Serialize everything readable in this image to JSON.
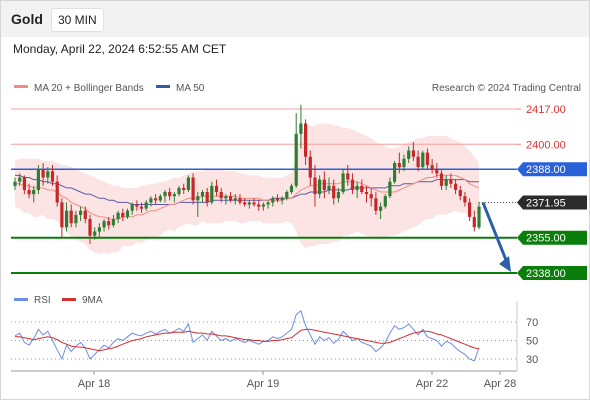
{
  "header": {
    "title": "Gold",
    "timeframe": "30 MIN",
    "datetime": "Monday, April 22, 2024 6:52:55 AM CET"
  },
  "credit": "Research © 2024 Trading Central",
  "legend": {
    "ma20_bb": "MA 20 + Bollinger Bands",
    "ma50": "MA 50",
    "rsi": "RSI",
    "rsi_ma": "9MA"
  },
  "colors": {
    "up_candle": "#2e7d32",
    "down_candle": "#c62828",
    "bollinger_band": "#fde4e4",
    "ma20": "#f28b82",
    "ma50": "#5a5aa8",
    "pivot_line": "#2962d8",
    "support_line": "#0a7d0a",
    "resistance_line": "#f4a0a0",
    "rsi_line": "#6b8ee6",
    "rsi_ma_line": "#d32f2f",
    "forecast_arrow": "#2d5fa8"
  },
  "chart_data": {
    "type": "candlestick",
    "instrument": "Gold",
    "timeframe": "30 MIN",
    "x_ticks": [
      "Apr 18",
      "Apr 19",
      "Apr 22",
      "Apr 28"
    ],
    "price_levels": {
      "resistance": [
        2417.0,
        2400.0
      ],
      "pivot": 2388.0,
      "last": 2371.95,
      "support": [
        2355.0,
        2338.0
      ]
    },
    "price_labels": [
      "2417.00",
      "2400.00",
      "2388.00",
      "2371.95",
      "2355.00",
      "2338.00"
    ],
    "forecast": {
      "from": 2371.95,
      "to": 2338.0
    },
    "candles": [
      [
        2380,
        2384,
        2378,
        2382
      ],
      [
        2382,
        2386,
        2380,
        2384
      ],
      [
        2384,
        2385,
        2376,
        2378
      ],
      [
        2378,
        2381,
        2374,
        2376
      ],
      [
        2376,
        2380,
        2372,
        2378
      ],
      [
        2378,
        2390,
        2376,
        2388
      ],
      [
        2388,
        2391,
        2380,
        2384
      ],
      [
        2384,
        2389,
        2381,
        2387
      ],
      [
        2387,
        2390,
        2380,
        2382
      ],
      [
        2382,
        2385,
        2370,
        2372
      ],
      [
        2372,
        2374,
        2355,
        2360
      ],
      [
        2360,
        2372,
        2358,
        2368
      ],
      [
        2368,
        2371,
        2360,
        2362
      ],
      [
        2362,
        2368,
        2360,
        2366
      ],
      [
        2366,
        2370,
        2363,
        2368
      ],
      [
        2368,
        2370,
        2362,
        2364
      ],
      [
        2364,
        2366,
        2352,
        2356
      ],
      [
        2356,
        2360,
        2354,
        2358
      ],
      [
        2358,
        2362,
        2355,
        2360
      ],
      [
        2360,
        2364,
        2358,
        2363
      ],
      [
        2363,
        2365,
        2359,
        2361
      ],
      [
        2361,
        2366,
        2360,
        2364
      ],
      [
        2364,
        2368,
        2362,
        2367
      ],
      [
        2367,
        2369,
        2363,
        2365
      ],
      [
        2365,
        2369,
        2364,
        2368
      ],
      [
        2368,
        2372,
        2366,
        2371
      ],
      [
        2371,
        2373,
        2368,
        2370
      ],
      [
        2370,
        2372,
        2367,
        2369
      ],
      [
        2369,
        2373,
        2368,
        2372
      ],
      [
        2372,
        2375,
        2370,
        2374
      ],
      [
        2374,
        2376,
        2371,
        2373
      ],
      [
        2373,
        2376,
        2372,
        2375
      ],
      [
        2375,
        2378,
        2372,
        2377
      ],
      [
        2377,
        2379,
        2373,
        2375
      ],
      [
        2375,
        2377,
        2372,
        2376
      ],
      [
        2376,
        2380,
        2375,
        2379
      ],
      [
        2379,
        2381,
        2376,
        2378
      ],
      [
        2378,
        2385,
        2377,
        2384
      ],
      [
        2384,
        2386,
        2371,
        2373
      ],
      [
        2373,
        2377,
        2365,
        2375
      ],
      [
        2375,
        2378,
        2372,
        2377
      ],
      [
        2377,
        2379,
        2370,
        2372
      ],
      [
        2372,
        2382,
        2371,
        2380
      ],
      [
        2380,
        2383,
        2375,
        2377
      ],
      [
        2377,
        2379,
        2372,
        2374
      ],
      [
        2374,
        2376,
        2371,
        2375
      ],
      [
        2375,
        2377,
        2372,
        2373
      ],
      [
        2373,
        2376,
        2371,
        2374
      ],
      [
        2374,
        2376,
        2371,
        2372
      ],
      [
        2372,
        2374,
        2370,
        2371
      ],
      [
        2371,
        2373,
        2369,
        2372
      ],
      [
        2372,
        2374,
        2370,
        2371
      ],
      [
        2371,
        2373,
        2368,
        2370
      ],
      [
        2370,
        2372,
        2368,
        2371
      ],
      [
        2371,
        2373,
        2369,
        2372
      ],
      [
        2372,
        2375,
        2370,
        2374
      ],
      [
        2374,
        2376,
        2372,
        2373
      ],
      [
        2373,
        2375,
        2371,
        2374
      ],
      [
        2374,
        2378,
        2373,
        2377
      ],
      [
        2377,
        2381,
        2376,
        2380
      ],
      [
        2380,
        2415,
        2379,
        2405
      ],
      [
        2405,
        2419,
        2398,
        2410
      ],
      [
        2410,
        2412,
        2390,
        2394
      ],
      [
        2394,
        2397,
        2380,
        2384
      ],
      [
        2384,
        2390,
        2370,
        2376
      ],
      [
        2376,
        2385,
        2374,
        2383
      ],
      [
        2383,
        2387,
        2374,
        2378
      ],
      [
        2378,
        2384,
        2376,
        2380
      ],
      [
        2380,
        2383,
        2371,
        2374
      ],
      [
        2374,
        2379,
        2372,
        2377
      ],
      [
        2377,
        2388,
        2376,
        2386
      ],
      [
        2386,
        2390,
        2380,
        2383
      ],
      [
        2383,
        2386,
        2376,
        2378
      ],
      [
        2378,
        2382,
        2374,
        2380
      ],
      [
        2380,
        2383,
        2376,
        2377
      ],
      [
        2377,
        2380,
        2372,
        2376
      ],
      [
        2376,
        2379,
        2370,
        2374
      ],
      [
        2374,
        2377,
        2366,
        2368
      ],
      [
        2368,
        2372,
        2364,
        2370
      ],
      [
        2370,
        2376,
        2369,
        2375
      ],
      [
        2375,
        2384,
        2374,
        2382
      ],
      [
        2382,
        2392,
        2381,
        2391
      ],
      [
        2391,
        2396,
        2386,
        2389
      ],
      [
        2389,
        2395,
        2387,
        2393
      ],
      [
        2393,
        2399,
        2391,
        2397
      ],
      [
        2397,
        2401,
        2392,
        2394
      ],
      [
        2394,
        2397,
        2387,
        2389
      ],
      [
        2389,
        2397,
        2388,
        2396
      ],
      [
        2396,
        2398,
        2388,
        2390
      ],
      [
        2390,
        2393,
        2386,
        2388
      ],
      [
        2388,
        2391,
        2384,
        2386
      ],
      [
        2386,
        2388,
        2378,
        2380
      ],
      [
        2380,
        2385,
        2378,
        2383
      ],
      [
        2383,
        2386,
        2379,
        2381
      ],
      [
        2381,
        2383,
        2376,
        2378
      ],
      [
        2378,
        2380,
        2373,
        2375
      ],
      [
        2375,
        2377,
        2370,
        2372
      ],
      [
        2372,
        2374,
        2363,
        2365
      ],
      [
        2365,
        2368,
        2358,
        2360
      ],
      [
        2360,
        2372,
        2359,
        2370
      ]
    ],
    "ma20": [
      2381,
      2381,
      2380,
      2380,
      2379,
      2379,
      2379,
      2378,
      2378,
      2377,
      2375,
      2374,
      2372,
      2371,
      2370,
      2369,
      2367,
      2366,
      2365,
      2365,
      2364,
      2364,
      2364,
      2365,
      2365,
      2365,
      2366,
      2366,
      2367,
      2368,
      2368,
      2369,
      2370,
      2371,
      2371,
      2372,
      2373,
      2374,
      2374,
      2374,
      2375,
      2375,
      2375,
      2375,
      2375,
      2375,
      2375,
      2375,
      2374,
      2374,
      2374,
      2374,
      2374,
      2373,
      2373,
      2373,
      2373,
      2373,
      2374,
      2374,
      2376,
      2378,
      2379,
      2380,
      2380,
      2381,
      2381,
      2381,
      2381,
      2381,
      2382,
      2382,
      2382,
      2382,
      2381,
      2380,
      2379,
      2378,
      2377,
      2377,
      2377,
      2377,
      2378,
      2379,
      2380,
      2381,
      2382,
      2383,
      2384,
      2384,
      2385,
      2385,
      2385,
      2385,
      2385,
      2384,
      2383,
      2381,
      2380,
      2379
    ],
    "ma50": [
      2385,
      2385,
      2384,
      2384,
      2383,
      2383,
      2382,
      2382,
      2381,
      2381,
      2380,
      2379,
      2379,
      2378,
      2377,
      2376,
      2376,
      2375,
      2374,
      2374,
      2373,
      2373,
      2372,
      2372,
      2372,
      2371,
      2371,
      2371,
      2371,
      2371,
      2371,
      2371,
      2371,
      2371,
      2371,
      2372,
      2372,
      2372,
      2372,
      2372,
      2372,
      2372,
      2373,
      2373,
      2373,
      2373,
      2373,
      2373,
      2373,
      2373,
      2373,
      2373,
      2373,
      2373,
      2373,
      2374,
      2374,
      2374,
      2374,
      2374,
      2375,
      2376,
      2376,
      2377,
      2377,
      2377,
      2377,
      2378,
      2378,
      2378,
      2378,
      2378,
      2379,
      2379,
      2379,
      2379,
      2379,
      2379,
      2379,
      2379,
      2380,
      2380,
      2380,
      2381,
      2381,
      2381,
      2382,
      2382,
      2382,
      2382,
      2383,
      2383,
      2383,
      2383,
      2383,
      2383,
      2383,
      2382,
      2382,
      2382
    ],
    "bb_upper": [
      2392,
      2393,
      2393,
      2393,
      2393,
      2393,
      2392,
      2392,
      2392,
      2391,
      2390,
      2390,
      2389,
      2388,
      2387,
      2386,
      2385,
      2384,
      2383,
      2382,
      2381,
      2380,
      2380,
      2379,
      2379,
      2379,
      2379,
      2380,
      2380,
      2381,
      2381,
      2382,
      2382,
      2383,
      2384,
      2384,
      2385,
      2386,
      2387,
      2387,
      2387,
      2388,
      2388,
      2388,
      2388,
      2387,
      2387,
      2387,
      2386,
      2386,
      2385,
      2385,
      2385,
      2384,
      2384,
      2384,
      2384,
      2384,
      2385,
      2386,
      2394,
      2404,
      2408,
      2409,
      2409,
      2410,
      2410,
      2410,
      2409,
      2409,
      2408,
      2408,
      2407,
      2406,
      2405,
      2404,
      2403,
      2401,
      2400,
      2399,
      2398,
      2398,
      2399,
      2400,
      2401,
      2402,
      2403,
      2403,
      2404,
      2404,
      2404,
      2404,
      2404,
      2403,
      2402,
      2401,
      2399,
      2397,
      2394,
      2391
    ],
    "bb_lower": [
      2370,
      2369,
      2367,
      2367,
      2365,
      2365,
      2366,
      2364,
      2364,
      2363,
      2360,
      2358,
      2355,
      2354,
      2353,
      2352,
      2349,
      2348,
      2347,
      2348,
      2347,
      2348,
      2348,
      2351,
      2351,
      2351,
      2353,
      2352,
      2354,
      2355,
      2355,
      2356,
      2358,
      2359,
      2358,
      2360,
      2361,
      2362,
      2361,
      2361,
      2363,
      2362,
      2362,
      2362,
      2362,
      2363,
      2363,
      2363,
      2362,
      2362,
      2363,
      2363,
      2363,
      2362,
      2362,
      2362,
      2362,
      2362,
      2363,
      2362,
      2358,
      2352,
      2350,
      2351,
      2351,
      2352,
      2352,
      2352,
      2353,
      2353,
      2356,
      2356,
      2357,
      2358,
      2357,
      2356,
      2355,
      2355,
      2354,
      2355,
      2356,
      2356,
      2357,
      2358,
      2359,
      2360,
      2361,
      2363,
      2364,
      2364,
      2366,
      2366,
      2366,
      2367,
      2368,
      2367,
      2367,
      2365,
      2366,
      2367
    ],
    "rsi_ticks": [
      70,
      50,
      30
    ],
    "rsi": [
      55,
      58,
      48,
      45,
      52,
      62,
      56,
      60,
      50,
      40,
      30,
      45,
      38,
      44,
      48,
      42,
      30,
      35,
      40,
      45,
      42,
      48,
      52,
      50,
      54,
      58,
      56,
      55,
      58,
      60,
      57,
      60,
      62,
      58,
      60,
      63,
      60,
      68,
      48,
      52,
      56,
      50,
      60,
      55,
      50,
      52,
      49,
      52,
      50,
      48,
      50,
      48,
      46,
      49,
      50,
      54,
      52,
      54,
      58,
      62,
      78,
      82,
      66,
      56,
      46,
      54,
      50,
      53,
      47,
      51,
      60,
      55,
      50,
      52,
      48,
      46,
      44,
      38,
      42,
      48,
      58,
      66,
      62,
      64,
      68,
      62,
      56,
      62,
      54,
      52,
      50,
      44,
      49,
      47,
      42,
      38,
      35,
      30,
      28,
      42
    ],
    "rsi_ma": [
      54,
      54,
      53,
      52,
      51,
      52,
      53,
      54,
      53,
      51,
      48,
      46,
      44,
      43,
      43,
      42,
      41,
      40,
      39,
      40,
      41,
      42,
      44,
      46,
      48,
      50,
      51,
      52,
      54,
      55,
      56,
      57,
      58,
      58,
      59,
      59,
      59,
      60,
      59,
      58,
      58,
      57,
      57,
      56,
      55,
      55,
      54,
      53,
      52,
      51,
      51,
      50,
      50,
      49,
      49,
      50,
      50,
      51,
      52,
      53,
      57,
      61,
      62,
      62,
      61,
      60,
      59,
      58,
      57,
      56,
      55,
      54,
      53,
      52,
      51,
      50,
      49,
      48,
      47,
      47,
      48,
      50,
      52,
      54,
      56,
      58,
      59,
      60,
      60,
      59,
      57,
      56,
      54,
      52,
      50,
      48,
      46,
      44,
      42,
      41
    ]
  }
}
